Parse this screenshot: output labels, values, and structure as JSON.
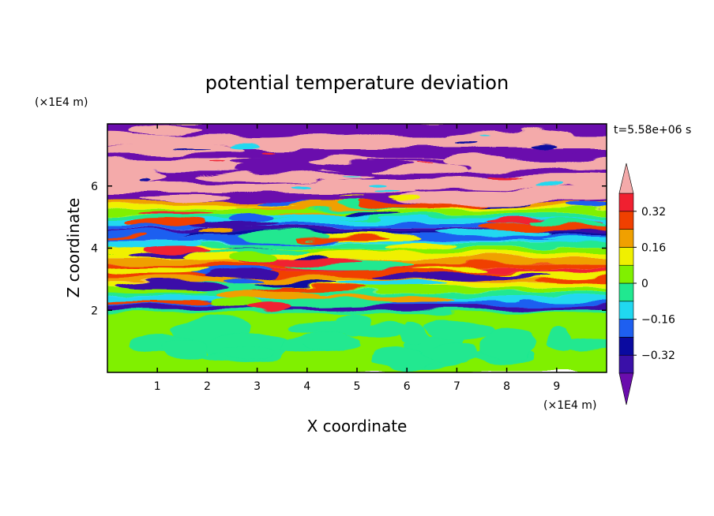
{
  "chart_data": {
    "type": "heatmap",
    "title": "potential temperature deviation",
    "xlabel": "X coordinate",
    "ylabel": "Z coordinate",
    "x_unit": "(×1E4 m)",
    "y_unit": "(×1E4 m)",
    "time_label": "t=5.58e+06 s",
    "xlim": [
      0,
      10
    ],
    "ylim": [
      0,
      8
    ],
    "x_ticks": [
      1,
      2,
      3,
      4,
      5,
      6,
      7,
      8,
      9
    ],
    "y_ticks": [
      2,
      4,
      6
    ],
    "colorbar": {
      "levels": [
        -0.4,
        -0.32,
        -0.24,
        -0.16,
        -0.08,
        0,
        0.08,
        0.16,
        0.24,
        0.32,
        0.4
      ],
      "tick_values": [
        0.32,
        0.16,
        0,
        -0.16,
        -0.32
      ],
      "tick_labels": [
        "0.32",
        "0.16",
        "0",
        "−0.16",
        "−0.32"
      ],
      "colors": [
        "#6a0dad",
        "#3a10a8",
        "#0a0aa0",
        "#1e5ff0",
        "#20d8f0",
        "#20e890",
        "#80f000",
        "#f0f000",
        "#f0a000",
        "#f04000",
        "#f02030",
        "#f4aaaa"
      ],
      "extend": "both"
    },
    "regions": [
      {
        "z_range": [
          0,
          1.9
        ],
        "description": "lower layer, near-zero deviation",
        "levels_present": [
          0,
          0.08
        ]
      },
      {
        "z_range": [
          1.9,
          5.5
        ],
        "description": "banded wave region",
        "levels_present": [
          -0.32,
          -0.16,
          0,
          0.16,
          0.32
        ]
      },
      {
        "z_range": [
          5.5,
          8
        ],
        "description": "upper layer alternating extremes",
        "levels_present": [
          -0.4,
          0.4
        ]
      }
    ]
  }
}
